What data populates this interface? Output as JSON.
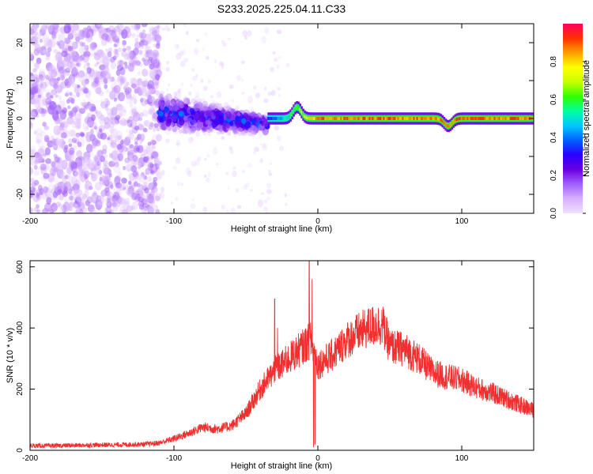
{
  "page_title": "S233.2025.225.04.11.C33",
  "colors": {
    "snr_line": "#f03030",
    "frame": "#000000",
    "background": "#ffffff",
    "colormap": [
      "#f0e0ff",
      "#d8b0ff",
      "#a060ff",
      "#6a00e0",
      "#2a00ff",
      "#0060ff",
      "#00c8ff",
      "#00ffa0",
      "#30ff00",
      "#c8ff00",
      "#ffff00",
      "#ffa000",
      "#ff3000",
      "#ff0060"
    ]
  },
  "chart_data": [
    {
      "type": "heatmap",
      "title": "S233.2025.225.04.11.C33",
      "xlabel": "Height of straight line (km)",
      "ylabel": "Frequency (Hz)",
      "xlim": [
        -200,
        150
      ],
      "ylim": [
        -25,
        25
      ],
      "xticks": [
        -200,
        -100,
        0,
        100
      ],
      "yticks": [
        -20,
        -10,
        0,
        10,
        20
      ],
      "colorbar": {
        "label": "Normalized spectral amplitude",
        "range": [
          0,
          1
        ],
        "ticks": [
          "0.0",
          "0.2",
          "0.4",
          "0.6",
          "0.8"
        ]
      },
      "features": {
        "noise_region_x": [
          -200,
          -110
        ],
        "noise_amplitude": 0.1,
        "transition_region_x": [
          -110,
          -35
        ],
        "transition_peak_amplitude": 0.35,
        "transition_freq_spread_hz": [
          -6,
          4
        ],
        "narrow_line_region_x": [
          -35,
          150
        ],
        "narrow_line_freq_hz": 0.0,
        "narrow_line_peak_amplitude": 0.95,
        "freq_bumps": [
          {
            "x": -15,
            "freq_hz": 3
          },
          {
            "x": 90,
            "freq_hz": -2
          }
        ]
      }
    },
    {
      "type": "line",
      "title": "",
      "xlabel": "Height of straight line (km)",
      "ylabel": "SNR (10 * v/v)",
      "xlim": [
        -200,
        150
      ],
      "ylim": [
        0,
        620
      ],
      "xticks": [
        -200,
        -100,
        0,
        100
      ],
      "yticks": [
        0,
        200,
        400,
        600
      ],
      "series": [
        {
          "name": "SNR",
          "x": [
            -200,
            -180,
            -160,
            -140,
            -120,
            -110,
            -100,
            -90,
            -80,
            -70,
            -60,
            -50,
            -40,
            -30,
            -20,
            -10,
            -5,
            0,
            10,
            20,
            30,
            40,
            45,
            50,
            60,
            70,
            80,
            90,
            100,
            110,
            120,
            130,
            140,
            150
          ],
          "y": [
            15,
            15,
            17,
            18,
            20,
            24,
            38,
            55,
            75,
            70,
            80,
            120,
            200,
            260,
            300,
            340,
            360,
            280,
            310,
            360,
            390,
            410,
            410,
            340,
            330,
            300,
            255,
            240,
            230,
            205,
            190,
            170,
            150,
            130
          ],
          "spikes": [
            {
              "x": -30,
              "y": 495
            },
            {
              "x": -28,
              "y": 400
            },
            {
              "x": -6,
              "y": 620
            },
            {
              "x": -4,
              "y": 560
            },
            {
              "x": -3,
              "y": 10
            },
            {
              "x": -2,
              "y": 20
            }
          ]
        }
      ]
    }
  ]
}
